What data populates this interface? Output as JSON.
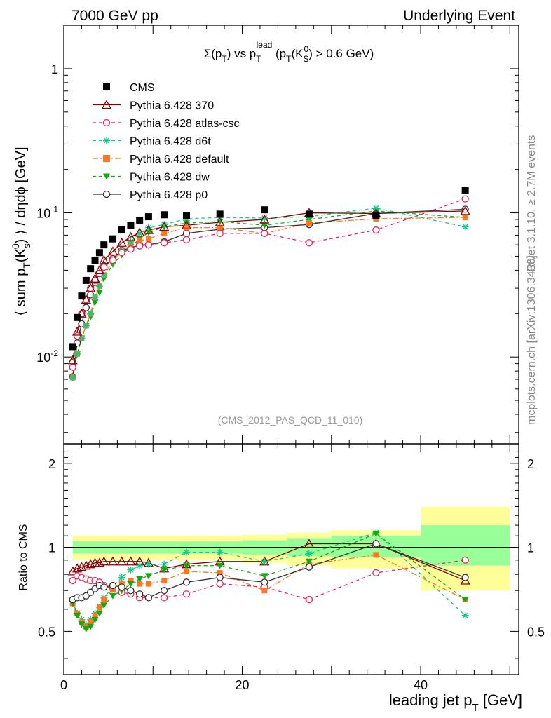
{
  "header": {
    "left": "7000 GeV pp",
    "right": "Underlying Event"
  },
  "side": {
    "rivet": "Rivet 3.1.10, ≥ 2.7M events",
    "mcplots": "mcplots.cern.ch [arXiv:1306.3436]"
  },
  "plot_title": "Σ(p_T) vs p_T^lead (p_T(K_S^0) > 0.6 GeV)",
  "analysis_id": "(CMS_2012_PAS_QCD_11_010)",
  "colors": {
    "CMS": "#000000",
    "p370": "#8b0000",
    "atlas": "#ee2255",
    "d6t": "#11cc88",
    "default": "#ff7722",
    "dw": "#11aa11",
    "p0": "#333333",
    "band_inner": "#99ff99",
    "band_outer": "#ffff99"
  },
  "chart_data": [
    {
      "type": "scatter",
      "panel": "main",
      "title": "Σ(p_T) vs p_T^lead (p_T(K_S^0) > 0.6 GeV)",
      "xlabel": "leading jet p_T [GeV]",
      "ylabel": "⟨ sum p_T(K_S^0) ⟩ / dηdφ [GeV]",
      "xlim": [
        0,
        51
      ],
      "ylim": [
        0.0025,
        2.0
      ],
      "yscale": "log",
      "x_ticks": [
        "0",
        "20",
        "40"
      ],
      "y_ticks": [
        "10^-2",
        "10^-1",
        "1"
      ],
      "legend_position": "top-left",
      "x": [
        1.0,
        1.5,
        2.0,
        2.5,
        3.0,
        3.5,
        4.0,
        4.5,
        5.5,
        6.5,
        7.5,
        8.5,
        9.5,
        11.25,
        13.75,
        17.5,
        22.5,
        27.5,
        35.0,
        45.0
      ],
      "series": [
        {
          "name": "CMS",
          "key": "CMS",
          "marker": "square-filled",
          "line": "none",
          "values": [
            0.0118,
            0.0188,
            0.0265,
            0.034,
            0.041,
            0.047,
            0.053,
            0.06,
            0.066,
            0.076,
            0.082,
            0.089,
            0.094,
            0.097,
            0.096,
            0.098,
            0.105,
            0.098,
            0.096,
            0.143
          ]
        },
        {
          "name": "Pythia 6.428 370",
          "key": "p370",
          "marker": "triangle-open",
          "line": "solid",
          "values": [
            0.0095,
            0.015,
            0.02,
            0.025,
            0.03,
            0.035,
            0.04,
            0.047,
            0.054,
            0.062,
            0.068,
            0.073,
            0.076,
            0.08,
            0.082,
            0.086,
            0.09,
            0.1,
            0.099,
            0.103
          ]
        },
        {
          "name": "Pythia 6.428 atlas-csc",
          "key": "atlas",
          "marker": "circle-open",
          "line": "dashed",
          "values": [
            0.0085,
            0.014,
            0.02,
            0.025,
            0.03,
            0.034,
            0.038,
            0.042,
            0.047,
            0.053,
            0.056,
            0.059,
            0.06,
            0.062,
            0.065,
            0.072,
            0.072,
            0.062,
            0.076,
            0.125
          ]
        },
        {
          "name": "Pythia 6.428 d6t",
          "key": "d6t",
          "marker": "star",
          "line": "dashed",
          "values": [
            0.0072,
            0.0105,
            0.0135,
            0.0165,
            0.02,
            0.026,
            0.031,
            0.037,
            0.046,
            0.055,
            0.063,
            0.072,
            0.079,
            0.083,
            0.091,
            0.093,
            0.092,
            0.094,
            0.108,
            0.08
          ]
        },
        {
          "name": "Pythia 6.428 default",
          "key": "default",
          "marker": "square-filled",
          "line": "dashdot",
          "values": [
            0.0072,
            0.0105,
            0.0135,
            0.0165,
            0.02,
            0.026,
            0.031,
            0.037,
            0.046,
            0.054,
            0.06,
            0.064,
            0.066,
            0.072,
            0.079,
            0.079,
            0.072,
            0.085,
            0.091,
            0.093
          ]
        },
        {
          "name": "Pythia 6.428 dw",
          "key": "dw",
          "marker": "triangle-down-filled",
          "line": "dashed",
          "values": [
            0.0072,
            0.0105,
            0.0135,
            0.0165,
            0.019,
            0.024,
            0.028,
            0.035,
            0.044,
            0.051,
            0.058,
            0.066,
            0.073,
            0.08,
            0.085,
            0.087,
            0.082,
            0.09,
            0.103,
            0.093
          ]
        },
        {
          "name": "Pythia 6.428 p0",
          "key": "p0",
          "marker": "circle-open",
          "line": "solid",
          "values": [
            0.0073,
            0.0125,
            0.017,
            0.022,
            0.027,
            0.033,
            0.038,
            0.043,
            0.048,
            0.055,
            0.057,
            0.06,
            0.06,
            0.063,
            0.072,
            0.077,
            0.079,
            0.083,
            0.099,
            0.106
          ]
        }
      ]
    },
    {
      "type": "scatter",
      "panel": "ratio",
      "xlabel": "leading jet p_T [GeV]",
      "ylabel": "Ratio to CMS",
      "xlim": [
        0,
        51
      ],
      "ylim": [
        0.35,
        2.35
      ],
      "yscale": "log",
      "y_ticks": [
        "0.5",
        "1",
        "2"
      ],
      "band_edges": [
        1,
        20,
        25,
        30,
        40,
        50
      ],
      "band_inner": [
        [
          0.95,
          1.05
        ],
        [
          0.94,
          1.06
        ],
        [
          0.93,
          1.08
        ],
        [
          0.92,
          1.1
        ],
        [
          0.86,
          1.2
        ]
      ],
      "band_outer": [
        [
          0.9,
          1.1
        ],
        [
          0.88,
          1.11
        ],
        [
          0.86,
          1.13
        ],
        [
          0.84,
          1.15
        ],
        [
          0.7,
          1.4
        ]
      ],
      "x": [
        1.0,
        1.5,
        2.0,
        2.5,
        3.0,
        3.5,
        4.0,
        4.5,
        5.5,
        6.5,
        7.5,
        8.5,
        9.5,
        11.25,
        13.75,
        17.5,
        22.5,
        27.5,
        35.0,
        45.0
      ],
      "series": [
        {
          "name": "Pythia 6.428 370",
          "key": "p370",
          "values": [
            0.82,
            0.84,
            0.85,
            0.86,
            0.87,
            0.88,
            0.88,
            0.89,
            0.89,
            0.89,
            0.89,
            0.89,
            0.88,
            0.84,
            0.87,
            0.89,
            0.89,
            1.03,
            1.03,
            0.76
          ]
        },
        {
          "name": "Pythia 6.428 atlas-csc",
          "key": "atlas",
          "values": [
            0.76,
            0.79,
            0.78,
            0.77,
            0.76,
            0.76,
            0.75,
            0.73,
            0.71,
            0.69,
            0.68,
            0.66,
            0.66,
            0.66,
            0.68,
            0.74,
            0.72,
            0.65,
            0.81,
            0.9
          ]
        },
        {
          "name": "Pythia 6.428 d6t",
          "key": "d6t",
          "values": [
            0.64,
            0.58,
            0.55,
            0.53,
            0.55,
            0.58,
            0.61,
            0.66,
            0.72,
            0.78,
            0.83,
            0.86,
            0.87,
            0.87,
            0.96,
            0.96,
            0.89,
            0.95,
            1.13,
            0.57
          ]
        },
        {
          "name": "Pythia 6.428 default",
          "key": "default",
          "values": [
            0.63,
            0.58,
            0.54,
            0.52,
            0.54,
            0.57,
            0.61,
            0.65,
            0.71,
            0.74,
            0.76,
            0.74,
            0.74,
            0.76,
            0.82,
            0.81,
            0.7,
            0.87,
            0.94,
            0.65
          ]
        },
        {
          "name": "Pythia 6.428 dw",
          "key": "dw",
          "values": [
            0.63,
            0.57,
            0.53,
            0.51,
            0.52,
            0.55,
            0.58,
            0.62,
            0.67,
            0.7,
            0.74,
            0.77,
            0.79,
            0.83,
            0.86,
            0.86,
            0.79,
            0.89,
            1.12,
            0.65
          ]
        },
        {
          "name": "Pythia 6.428 p0",
          "key": "p0",
          "values": [
            0.65,
            0.66,
            0.66,
            0.67,
            0.69,
            0.71,
            0.73,
            0.72,
            0.73,
            0.72,
            0.7,
            0.68,
            0.66,
            0.7,
            0.75,
            0.78,
            0.75,
            0.85,
            1.03,
            0.78
          ]
        }
      ]
    }
  ]
}
